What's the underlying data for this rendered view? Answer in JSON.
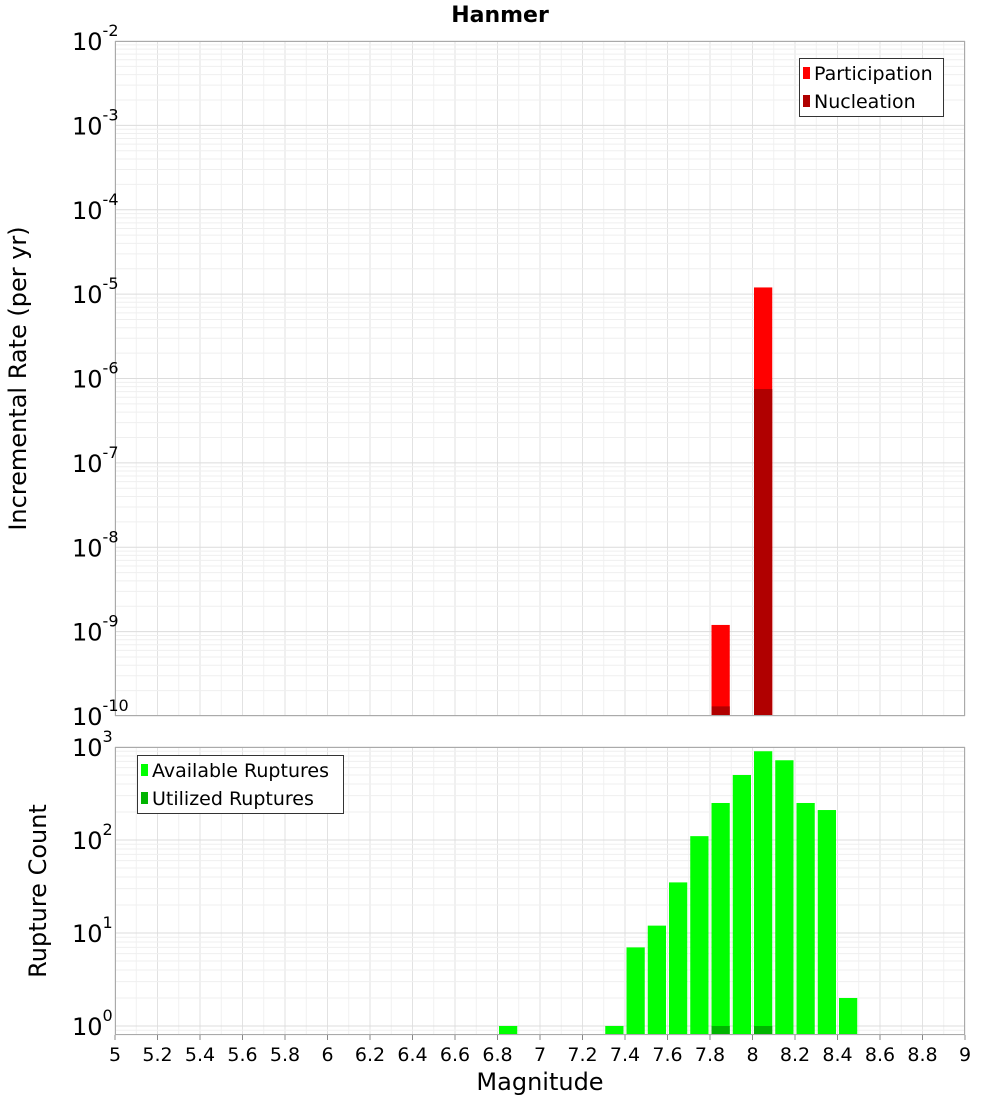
{
  "chart_data": [
    {
      "type": "bar",
      "title": "Hanmer",
      "xlabel": "",
      "ylabel": "Incremental Rate (per yr)",
      "yscale": "log",
      "ylim": [
        1e-10,
        0.01
      ],
      "xlim": [
        5,
        9
      ],
      "bar_width": 0.1,
      "grid": true,
      "legend_position": "top-right",
      "yticks": [
        {
          "base": "10",
          "exp": "-10",
          "value": 1e-10
        },
        {
          "base": "10",
          "exp": "-9",
          "value": 1e-09
        },
        {
          "base": "10",
          "exp": "-8",
          "value": 1e-08
        },
        {
          "base": "10",
          "exp": "-7",
          "value": 1e-07
        },
        {
          "base": "10",
          "exp": "-6",
          "value": 1e-06
        },
        {
          "base": "10",
          "exp": "-5",
          "value": 1e-05
        },
        {
          "base": "10",
          "exp": "-4",
          "value": 0.0001
        },
        {
          "base": "10",
          "exp": "-3",
          "value": 0.001
        },
        {
          "base": "10",
          "exp": "-2",
          "value": 0.01
        }
      ],
      "series": [
        {
          "name": "Participation",
          "color": "#ff0000",
          "points": [
            {
              "x": 7.85,
              "y": 1.2e-09
            },
            {
              "x": 8.05,
              "y": 1.2e-05
            }
          ]
        },
        {
          "name": "Nucleation",
          "color": "#b00000",
          "points": [
            {
              "x": 7.85,
              "y": 1.3e-10
            },
            {
              "x": 8.05,
              "y": 7.5e-07
            }
          ]
        }
      ]
    },
    {
      "type": "bar",
      "title": "",
      "xlabel": "Magnitude",
      "ylabel": "Rupture Count",
      "yscale": "log",
      "ylim": [
        0.8,
        1000
      ],
      "xlim": [
        5,
        9
      ],
      "bar_width": 0.1,
      "grid": true,
      "legend_position": "top-left",
      "xticks": [
        "5",
        "5.2",
        "5.4",
        "5.6",
        "5.8",
        "6",
        "6.2",
        "6.4",
        "6.6",
        "6.8",
        "7",
        "7.2",
        "7.4",
        "7.6",
        "7.8",
        "8",
        "8.2",
        "8.4",
        "8.6",
        "8.8",
        "9"
      ],
      "yticks": [
        {
          "base": "10",
          "exp": "0",
          "value": 1
        },
        {
          "base": "10",
          "exp": "1",
          "value": 10
        },
        {
          "base": "10",
          "exp": "2",
          "value": 100
        },
        {
          "base": "10",
          "exp": "3",
          "value": 1000
        }
      ],
      "series": [
        {
          "name": "Available Ruptures",
          "color": "#00ff00",
          "points": [
            {
              "x": 6.85,
              "y": 1
            },
            {
              "x": 7.35,
              "y": 1
            },
            {
              "x": 7.45,
              "y": 7
            },
            {
              "x": 7.55,
              "y": 12
            },
            {
              "x": 7.65,
              "y": 35
            },
            {
              "x": 7.75,
              "y": 110
            },
            {
              "x": 7.85,
              "y": 250
            },
            {
              "x": 7.95,
              "y": 500
            },
            {
              "x": 8.05,
              "y": 900
            },
            {
              "x": 8.15,
              "y": 720
            },
            {
              "x": 8.25,
              "y": 250
            },
            {
              "x": 8.35,
              "y": 210
            },
            {
              "x": 8.45,
              "y": 2
            }
          ]
        },
        {
          "name": "Utilized Ruptures",
          "color": "#00b400",
          "points": [
            {
              "x": 7.85,
              "y": 1
            },
            {
              "x": 8.05,
              "y": 1
            }
          ]
        }
      ]
    }
  ]
}
